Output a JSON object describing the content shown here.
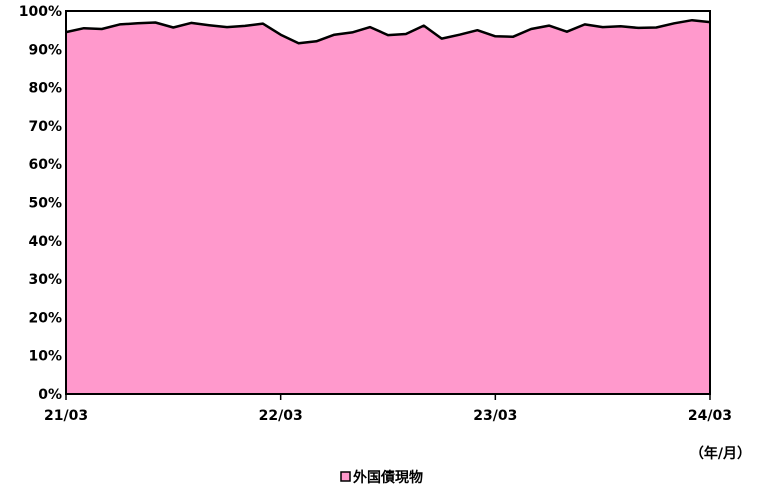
{
  "chart_data": {
    "type": "area",
    "x_tick_labels": [
      "21/03",
      "22/03",
      "23/03",
      "24/03"
    ],
    "y_tick_labels": [
      "0%",
      "10%",
      "20%",
      "30%",
      "40%",
      "50%",
      "60%",
      "70%",
      "80%",
      "90%",
      "100%"
    ],
    "ylim": [
      0,
      100
    ],
    "x_unit_label": "（年/月）",
    "series": [
      {
        "name": "外国債現物",
        "color": "#ff99cc",
        "x": [
          "21/03",
          "21/04",
          "21/05",
          "21/06",
          "21/07",
          "21/08",
          "21/09",
          "21/10",
          "21/11",
          "21/12",
          "22/01",
          "22/02",
          "22/03",
          "22/04",
          "22/05",
          "22/06",
          "22/07",
          "22/08",
          "22/09",
          "22/10",
          "22/11",
          "22/12",
          "23/01",
          "23/02",
          "23/03",
          "23/04",
          "23/05",
          "23/06",
          "23/07",
          "23/08",
          "23/09",
          "23/10",
          "23/11",
          "23/12",
          "24/01",
          "24/02",
          "24/03"
        ],
        "values": [
          94.5,
          95.5,
          95.3,
          96.5,
          96.8,
          97.0,
          95.7,
          96.9,
          96.3,
          95.8,
          96.1,
          96.7,
          93.8,
          91.6,
          92.1,
          93.8,
          94.4,
          95.8,
          93.7,
          94.0,
          96.2,
          92.8,
          93.8,
          95.0,
          93.4,
          93.3,
          95.3,
          96.2,
          94.6,
          96.5,
          95.8,
          96.0,
          95.6,
          95.7,
          96.8,
          97.6,
          97.1
        ]
      }
    ],
    "legend": {
      "position": "bottom-center"
    }
  }
}
